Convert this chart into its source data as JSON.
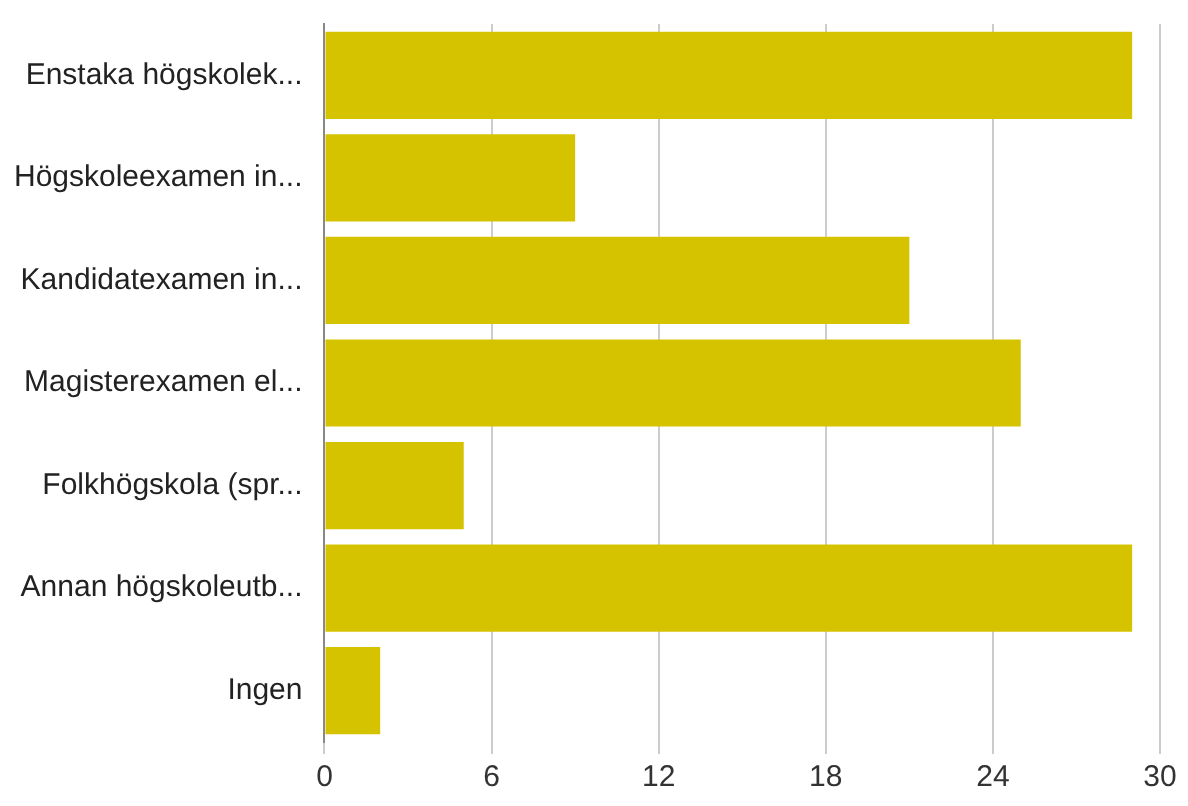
{
  "chart_data": {
    "type": "bar",
    "orientation": "horizontal",
    "categories": [
      "Enstaka högskolek...",
      "Högskoleexamen in...",
      "Kandidatexamen in...",
      "Magisterexamen el...",
      "Folkhögskola (spr...",
      "Annan högskoleutb...",
      "Ingen"
    ],
    "values": [
      29,
      9,
      21,
      25,
      5,
      29,
      2
    ],
    "color": "#d6c300",
    "xlim": [
      0,
      30
    ],
    "xticks": [
      0,
      6,
      12,
      18,
      24,
      30
    ],
    "grid": "x"
  }
}
